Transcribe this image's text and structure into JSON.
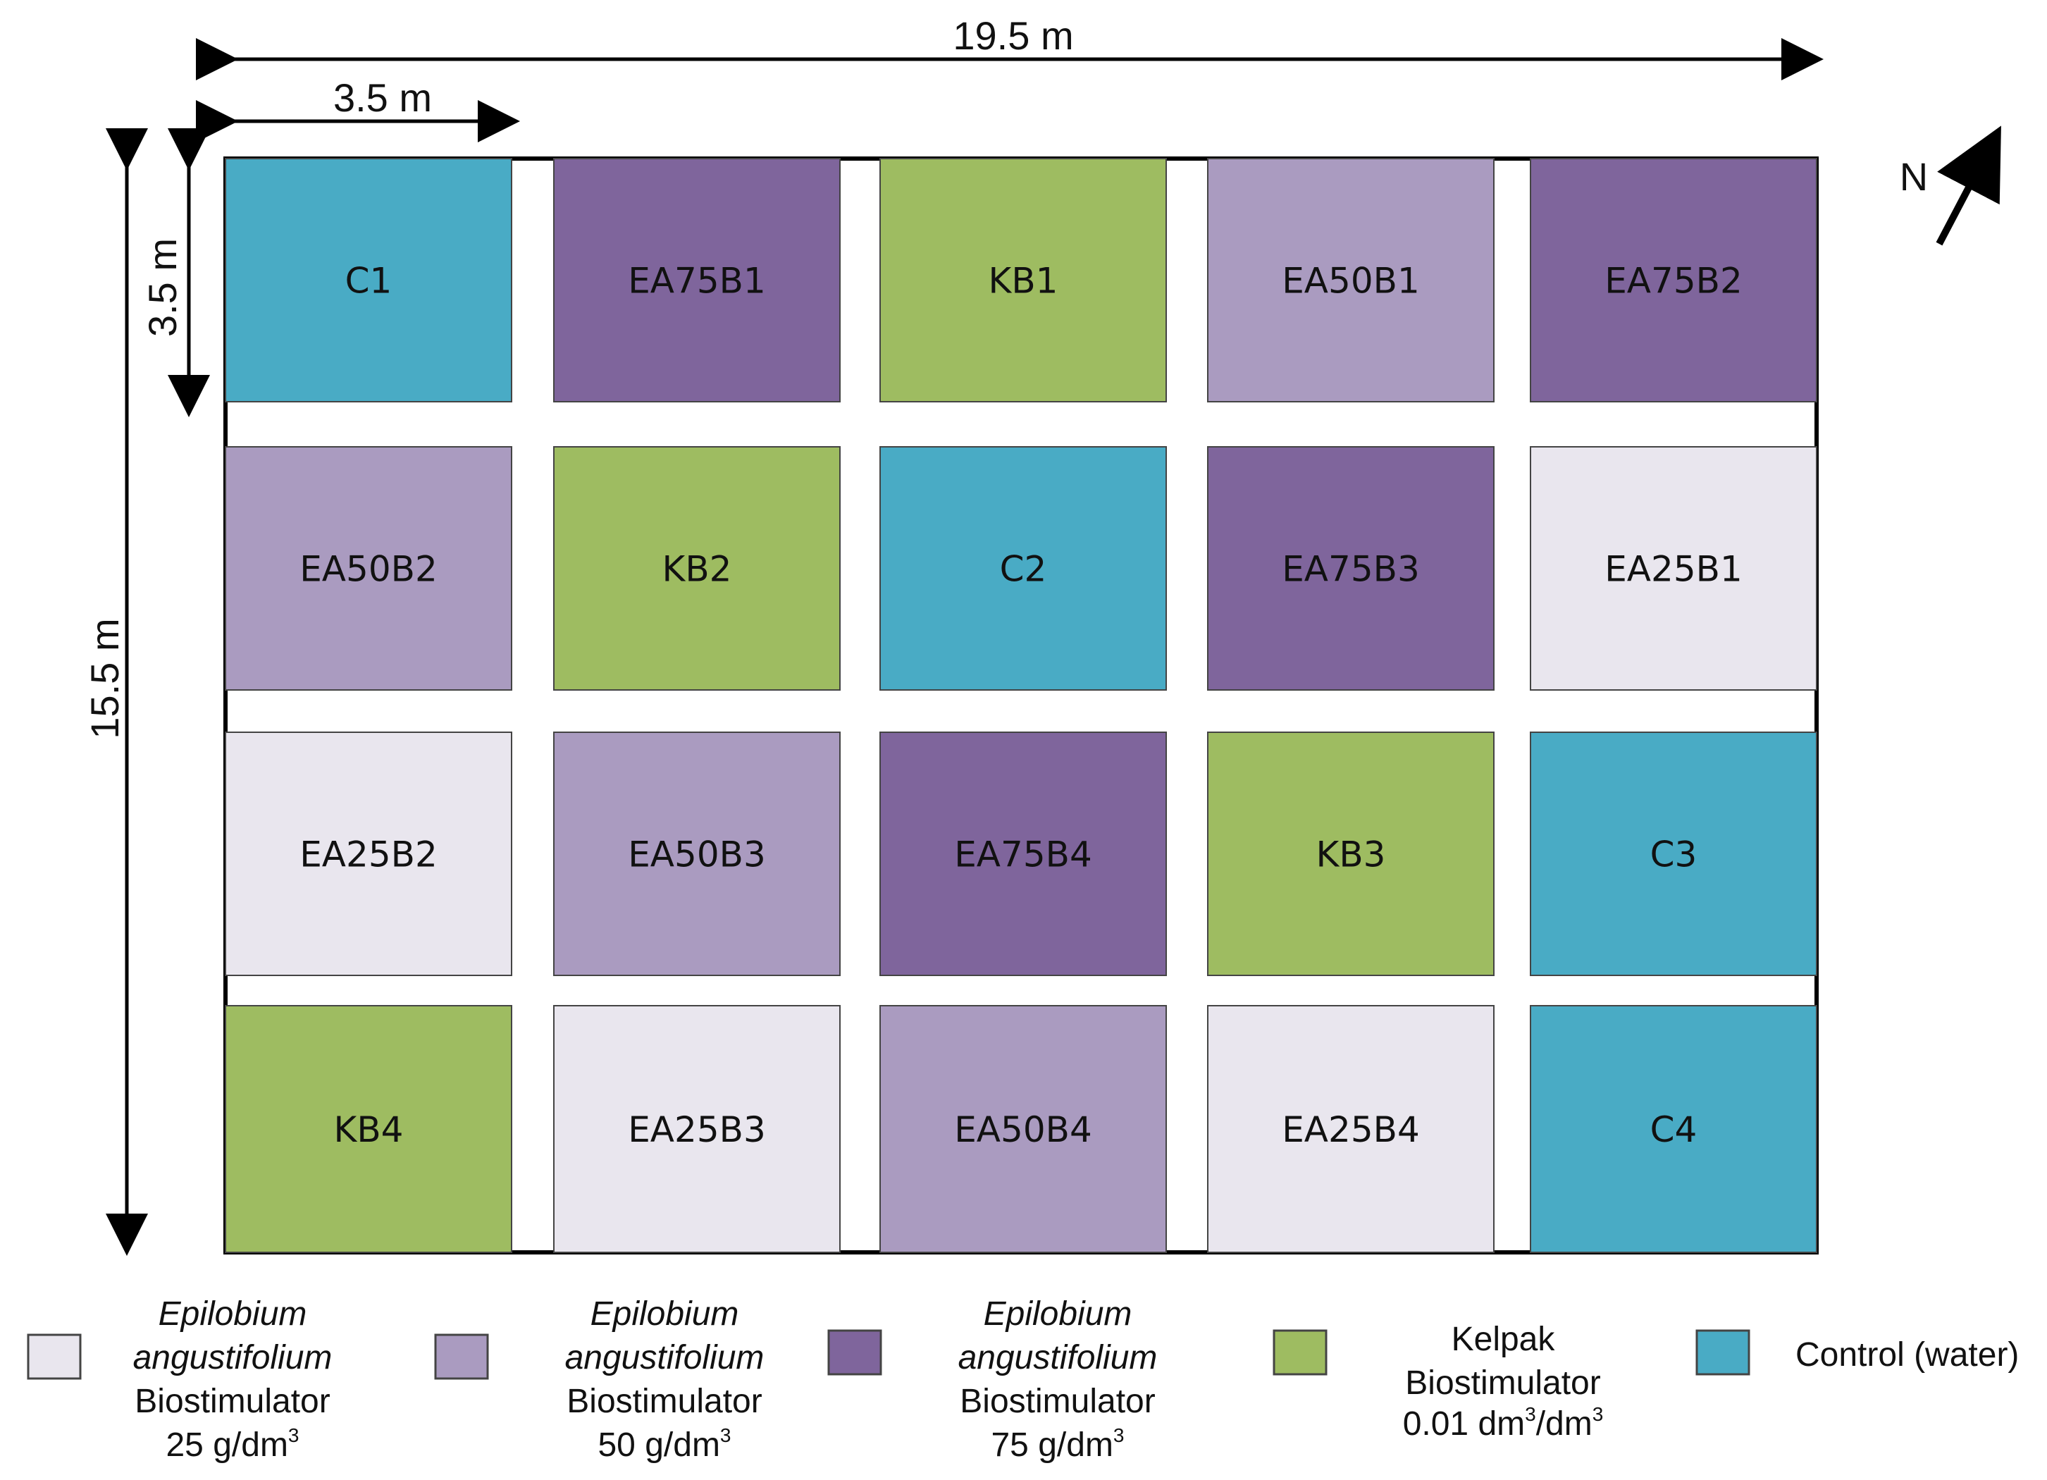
{
  "dimensions": {
    "total_width": "19.5 m",
    "plot_width": "3.5 m",
    "plot_height": "3.5 m",
    "total_height": "15.5 m"
  },
  "compass": {
    "label": "N"
  },
  "plots": [
    [
      {
        "label": "C1",
        "treatment": "control"
      },
      {
        "label": "EA75B1",
        "treatment": "ea75"
      },
      {
        "label": "KB1",
        "treatment": "kelpak"
      },
      {
        "label": "EA50B1",
        "treatment": "ea50"
      },
      {
        "label": "EA75B2",
        "treatment": "ea75"
      }
    ],
    [
      {
        "label": "EA50B2",
        "treatment": "ea50"
      },
      {
        "label": "KB2",
        "treatment": "kelpak"
      },
      {
        "label": "C2",
        "treatment": "control"
      },
      {
        "label": "EA75B3",
        "treatment": "ea75"
      },
      {
        "label": "EA25B1",
        "treatment": "ea25"
      }
    ],
    [
      {
        "label": "EA25B2",
        "treatment": "ea25"
      },
      {
        "label": "EA50B3",
        "treatment": "ea50"
      },
      {
        "label": "EA75B4",
        "treatment": "ea75"
      },
      {
        "label": "KB3",
        "treatment": "kelpak"
      },
      {
        "label": "C3",
        "treatment": "control"
      }
    ],
    [
      {
        "label": "KB4",
        "treatment": "kelpak"
      },
      {
        "label": "EA25B3",
        "treatment": "ea25"
      },
      {
        "label": "EA50B4",
        "treatment": "ea50"
      },
      {
        "label": "EA25B4",
        "treatment": "ea25"
      },
      {
        "label": "C4",
        "treatment": "control"
      }
    ]
  ],
  "colors": {
    "ea25": "#e9e6ee",
    "ea50": "#aa9bc0",
    "ea75": "#7f659c",
    "kelpak": "#9ebc61",
    "control": "#49abc5"
  },
  "legend": [
    {
      "treatment": "ea25",
      "lines": [
        "Epilobium",
        "angustifolium",
        "Biostimulator",
        "25 g/dm"
      ],
      "superscript": "3"
    },
    {
      "treatment": "ea50",
      "lines": [
        "Epilobium",
        "angustifolium",
        "Biostimulator",
        "50 g/dm"
      ],
      "superscript": "3"
    },
    {
      "treatment": "ea75",
      "lines": [
        "Epilobium",
        "angustifolium",
        "Biostimulator",
        "75 g/dm"
      ],
      "superscript": "3"
    },
    {
      "treatment": "kelpak",
      "line1": "Kelpak",
      "line2": "Biostimulator",
      "rate_value": "0.01 dm",
      "rate_sup1": "3",
      "rate_mid": "/dm",
      "rate_sup2": "3"
    },
    {
      "treatment": "control",
      "label": "Control (water)"
    }
  ]
}
